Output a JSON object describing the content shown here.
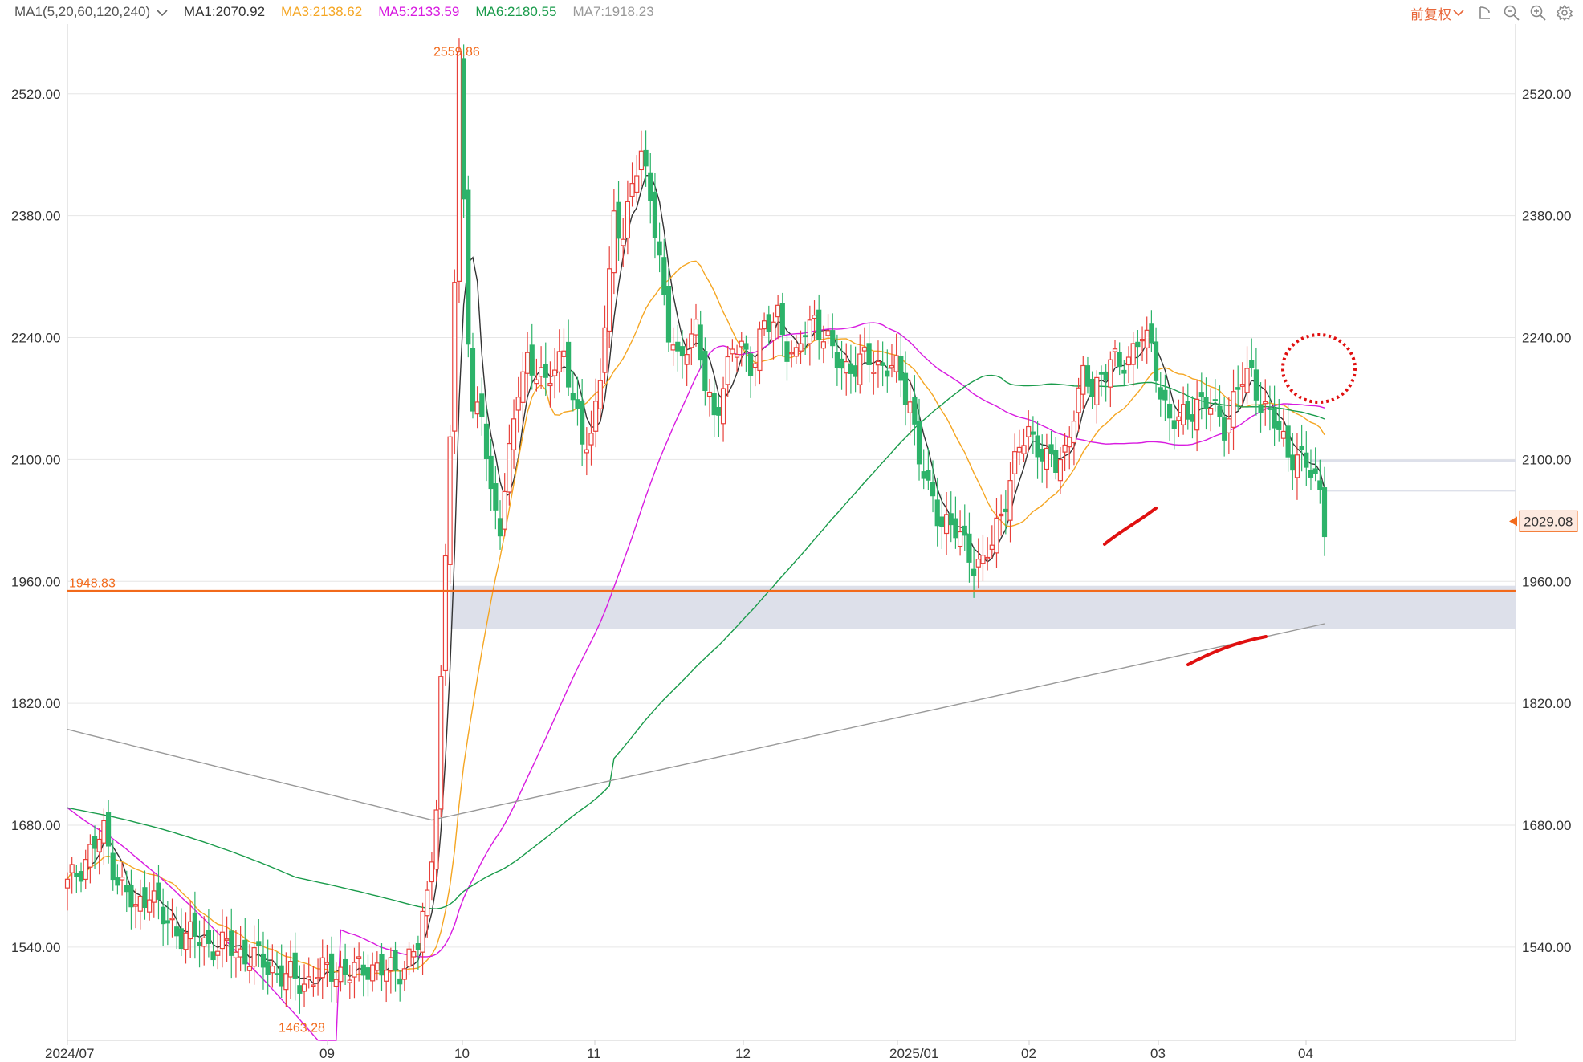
{
  "toolbar": {
    "ma_config": "MA1(5,20,60,120,240)",
    "ma_values": [
      {
        "label": "MA1:2070.92",
        "color": "#333333"
      },
      {
        "label": "MA3:2138.62",
        "color": "#f5a623"
      },
      {
        "label": "MA5:2133.59",
        "color": "#d81be0"
      },
      {
        "label": "MA6:2180.55",
        "color": "#1a9b4b"
      },
      {
        "label": "MA7:1918.23",
        "color": "#999999"
      }
    ],
    "adjust_label": "前复权",
    "icons": [
      "undo-icon",
      "zoom-out-icon",
      "zoom-in-icon",
      "settings-icon"
    ]
  },
  "colors": {
    "up": "#e8403a",
    "down": "#2db36a",
    "support": "#f26a1b",
    "zone": "#dde0ea",
    "grid": "#e6e6e6",
    "annotation": "#e01010",
    "price_label": "#f26a1b",
    "price_label_bg": "#fde9df"
  },
  "chart_data": {
    "type": "candlestick",
    "yaxis_ticks": [
      "2520.00",
      "2380.00",
      "2240.00",
      "2100.00",
      "1960.00",
      "1820.00",
      "1680.00",
      "1540.00"
    ],
    "ylim": [
      1433,
      2600
    ],
    "xaxis_ticks": [
      "2024/07",
      "09",
      "10",
      "11",
      "12",
      "2025/01",
      "02",
      "03",
      "04"
    ],
    "x_tick_days": [
      0,
      2,
      3,
      4,
      5,
      6,
      7,
      8,
      9
    ],
    "high_label": "2559.86",
    "low_label": "1463.28",
    "support_level": 1948.83,
    "support_label": "1948.83",
    "last_price": 2029.08,
    "last_price_label": "2029.08",
    "resistance_zone": [
      1905,
      1955
    ],
    "minor_zone": [
      2100,
      2065
    ],
    "keypoints": [
      [
        0,
        1610
      ],
      [
        5,
        1650
      ],
      [
        8,
        1670
      ],
      [
        11,
        1620
      ],
      [
        15,
        1580
      ],
      [
        18,
        1610
      ],
      [
        21,
        1570
      ],
      [
        24,
        1560
      ],
      [
        30,
        1545
      ],
      [
        36,
        1538
      ],
      [
        42,
        1525
      ],
      [
        48,
        1505
      ],
      [
        52,
        1500
      ],
      [
        58,
        1515
      ],
      [
        62,
        1508
      ],
      [
        66,
        1520
      ],
      [
        70,
        1510
      ],
      [
        74,
        1520
      ],
      [
        77,
        1540
      ],
      [
        79,
        1600
      ],
      [
        81,
        1710
      ],
      [
        82,
        1840
      ],
      [
        83,
        1980
      ],
      [
        84,
        2130
      ],
      [
        85,
        2300
      ],
      [
        86,
        2560
      ],
      [
        87,
        2410
      ],
      [
        88,
        2250
      ],
      [
        89,
        2150
      ],
      [
        91,
        2150
      ],
      [
        93,
        2060
      ],
      [
        95,
        2030
      ],
      [
        97,
        2100
      ],
      [
        99,
        2180
      ],
      [
        101,
        2220
      ],
      [
        103,
        2200
      ],
      [
        105,
        2180
      ],
      [
        107,
        2210
      ],
      [
        109,
        2230
      ],
      [
        111,
        2160
      ],
      [
        113,
        2120
      ],
      [
        115,
        2130
      ],
      [
        117,
        2200
      ],
      [
        119,
        2300
      ],
      [
        120,
        2380
      ],
      [
        122,
        2360
      ],
      [
        124,
        2420
      ],
      [
        126,
        2440
      ],
      [
        128,
        2410
      ],
      [
        130,
        2330
      ],
      [
        132,
        2240
      ],
      [
        134,
        2210
      ],
      [
        136,
        2240
      ],
      [
        138,
        2250
      ],
      [
        140,
        2180
      ],
      [
        142,
        2150
      ],
      [
        144,
        2190
      ],
      [
        146,
        2220
      ],
      [
        148,
        2230
      ],
      [
        150,
        2210
      ],
      [
        152,
        2240
      ],
      [
        154,
        2250
      ],
      [
        156,
        2270
      ],
      [
        158,
        2230
      ],
      [
        160,
        2210
      ],
      [
        162,
        2250
      ],
      [
        164,
        2265
      ],
      [
        166,
        2240
      ],
      [
        168,
        2220
      ],
      [
        170,
        2210
      ],
      [
        173,
        2205
      ],
      [
        176,
        2215
      ],
      [
        179,
        2208
      ],
      [
        182,
        2200
      ],
      [
        185,
        2170
      ],
      [
        187,
        2100
      ],
      [
        189,
        2060
      ],
      [
        191,
        2040
      ],
      [
        193,
        2030
      ],
      [
        195,
        2015
      ],
      [
        197,
        2000
      ],
      [
        199,
        1985
      ],
      [
        201,
        1980
      ],
      [
        203,
        2000
      ],
      [
        205,
        2040
      ],
      [
        207,
        2080
      ],
      [
        209,
        2110
      ],
      [
        211,
        2130
      ],
      [
        213,
        2120
      ],
      [
        215,
        2100
      ],
      [
        217,
        2090
      ],
      [
        219,
        2110
      ],
      [
        221,
        2160
      ],
      [
        223,
        2190
      ],
      [
        225,
        2180
      ],
      [
        227,
        2200
      ],
      [
        229,
        2215
      ],
      [
        231,
        2200
      ],
      [
        233,
        2220
      ],
      [
        235,
        2240
      ],
      [
        236,
        2245
      ],
      [
        238,
        2220
      ],
      [
        240,
        2180
      ],
      [
        242,
        2150
      ],
      [
        244,
        2140
      ],
      [
        246,
        2150
      ],
      [
        248,
        2170
      ],
      [
        250,
        2165
      ],
      [
        252,
        2150
      ],
      [
        254,
        2140
      ],
      [
        256,
        2170
      ],
      [
        258,
        2190
      ],
      [
        260,
        2195
      ],
      [
        262,
        2170
      ],
      [
        264,
        2150
      ],
      [
        266,
        2130
      ],
      [
        268,
        2110
      ],
      [
        270,
        2105
      ],
      [
        272,
        2090
      ],
      [
        274,
        2075
      ],
      [
        275,
        2065
      ],
      [
        276,
        2030
      ]
    ]
  }
}
